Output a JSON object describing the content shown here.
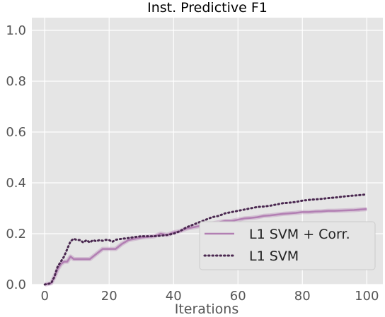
{
  "chart_data": {
    "type": "line",
    "title": "Inst. Predictive F1",
    "xlabel": "Iterations",
    "ylabel": "",
    "xlim": [
      -4,
      105
    ],
    "ylim": [
      0.0,
      1.05
    ],
    "xticks": [
      0,
      20,
      40,
      60,
      80,
      100
    ],
    "yticks": [
      0.0,
      0.2,
      0.4,
      0.6,
      0.8,
      1.0
    ],
    "xtick_labels": [
      "0",
      "20",
      "40",
      "60",
      "80",
      "100"
    ],
    "ytick_labels": [
      "0.0",
      "0.2",
      "0.4",
      "0.6",
      "0.8",
      "1.0"
    ],
    "grid": true,
    "legend_position": "lower-right",
    "background": "#e5e5e5",
    "grid_color": "#ffffff",
    "series": [
      {
        "name": "L1 SVM + Corr.",
        "color": "#b27fb3",
        "style": "solid",
        "x": [
          0,
          2,
          3,
          4,
          5,
          6,
          7,
          8,
          9,
          10,
          12,
          14,
          16,
          18,
          20,
          22,
          24,
          26,
          28,
          30,
          34,
          36,
          38,
          40,
          42,
          44,
          46,
          48,
          50,
          52,
          54,
          56,
          58,
          60,
          62,
          64,
          66,
          68,
          70,
          72,
          74,
          76,
          78,
          80,
          82,
          84,
          86,
          88,
          90,
          92,
          94,
          96,
          98,
          100
        ],
        "values": [
          0.0,
          0.005,
          0.03,
          0.06,
          0.08,
          0.09,
          0.09,
          0.11,
          0.1,
          0.1,
          0.1,
          0.1,
          0.12,
          0.14,
          0.14,
          0.14,
          0.16,
          0.175,
          0.18,
          0.185,
          0.19,
          0.2,
          0.195,
          0.205,
          0.21,
          0.22,
          0.225,
          0.23,
          0.235,
          0.24,
          0.245,
          0.25,
          0.25,
          0.255,
          0.26,
          0.262,
          0.265,
          0.27,
          0.272,
          0.275,
          0.278,
          0.28,
          0.282,
          0.285,
          0.285,
          0.287,
          0.288,
          0.29,
          0.29,
          0.291,
          0.292,
          0.293,
          0.295,
          0.297
        ]
      },
      {
        "name": "L1 SVM",
        "color": "#4a2850",
        "style": "dotted",
        "x": [
          0,
          2,
          3,
          4,
          5,
          6,
          7,
          8,
          9,
          10,
          11,
          12,
          13,
          14,
          15,
          16,
          17,
          18,
          19,
          20,
          21,
          22,
          24,
          26,
          28,
          30,
          32,
          34,
          36,
          38,
          40,
          42,
          44,
          46,
          48,
          50,
          52,
          54,
          56,
          58,
          60,
          62,
          64,
          66,
          68,
          70,
          72,
          74,
          76,
          78,
          80,
          82,
          84,
          86,
          88,
          90,
          92,
          94,
          96,
          98,
          100
        ],
        "values": [
          0.0,
          0.005,
          0.03,
          0.07,
          0.09,
          0.11,
          0.14,
          0.17,
          0.18,
          0.175,
          0.175,
          0.165,
          0.175,
          0.165,
          0.175,
          0.17,
          0.175,
          0.172,
          0.176,
          0.175,
          0.168,
          0.176,
          0.18,
          0.183,
          0.187,
          0.19,
          0.19,
          0.19,
          0.192,
          0.195,
          0.2,
          0.21,
          0.225,
          0.235,
          0.245,
          0.255,
          0.265,
          0.27,
          0.28,
          0.285,
          0.29,
          0.295,
          0.3,
          0.305,
          0.307,
          0.31,
          0.315,
          0.32,
          0.322,
          0.325,
          0.33,
          0.333,
          0.335,
          0.337,
          0.34,
          0.342,
          0.345,
          0.348,
          0.35,
          0.352,
          0.355
        ]
      }
    ]
  }
}
